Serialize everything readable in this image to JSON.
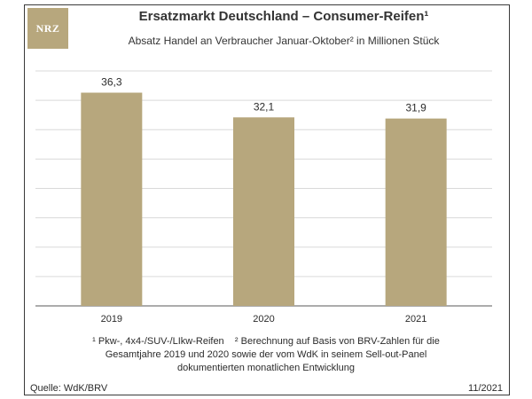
{
  "logo": {
    "text": "NRZ"
  },
  "chart_data": {
    "type": "bar",
    "title": "Ersatzmarkt Deutschland – Consumer-Reifen¹",
    "subtitle": "Absatz Handel an Verbraucher Januar-Oktober² in Millionen Stück",
    "categories": [
      "2019",
      "2020",
      "2021"
    ],
    "values": [
      36.3,
      32.1,
      31.9
    ],
    "value_labels": [
      "36,3",
      "32,1",
      "31,9"
    ],
    "xlabel": "",
    "ylabel": "",
    "ylim": [
      0,
      40
    ],
    "grid": true,
    "bar_color": "#b7a77d"
  },
  "footnote": {
    "line1": "¹ Pkw-, 4x4-/SUV-/LIkw-Reifen    ² Berechnung auf Basis von BRV-Zahlen für die",
    "line2": "Gesamtjahre 2019 und 2020 sowie der vom WdK in seinem Sell-out-Panel",
    "line3": "dokumentierten monatlichen Entwicklung"
  },
  "source": "Quelle: WdK/BRV",
  "date": "11/2021",
  "colors": {
    "accent": "#b7a77d",
    "grid": "#d9d9d9",
    "axis": "#595959"
  }
}
